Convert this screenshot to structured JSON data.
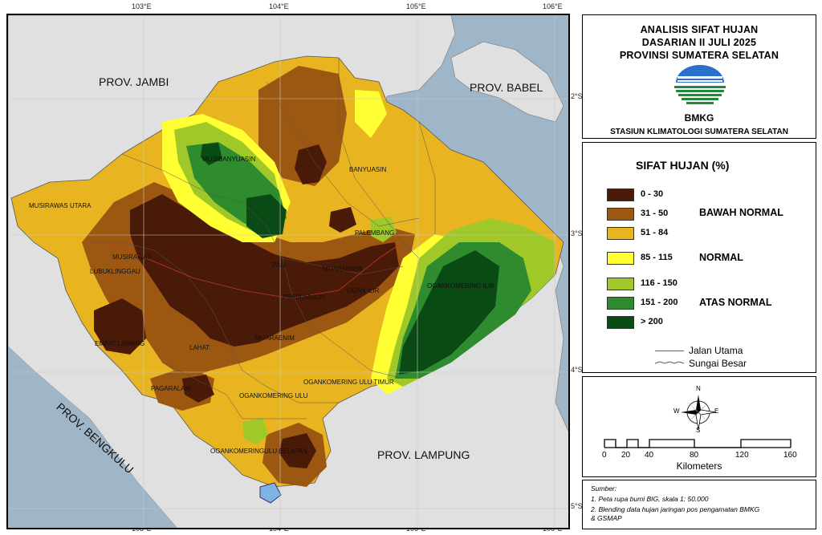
{
  "map": {
    "grid_lon": [
      "103°E",
      "104°E",
      "105°E",
      "106°E"
    ],
    "grid_lat": [
      "2°S",
      "3°S",
      "4°S",
      "5°S"
    ],
    "provinces": {
      "jambi": "PROV. JAMBI",
      "babel": "PROV. BABEL",
      "bengkulu": "PROV. BENGKULU",
      "lampung": "PROV. LAMPUNG"
    },
    "regencies": [
      "MUSIBANYUASIN",
      "BANYUASIN",
      "MUSIRAWAS UTARA",
      "PALEMBANG",
      "MUSIRAWAS",
      "LUBUKLINGGAU",
      "PALI",
      "MUARAENIM",
      "OGAN ILIR",
      "OGANKOMERING ILIR",
      "PRABUMULIH",
      "EMPAT LAWANG",
      "LAHAT",
      "MUARAENIM",
      "OGANKOMERING ULU TIMUR",
      "PAGARALAM",
      "OGANKOMERING ULU",
      "OGANKOMERINGULU SELATAN"
    ]
  },
  "title": {
    "line1": "ANALISIS SIFAT HUJAN",
    "line2": "DASARIAN II JULI 2025",
    "line3": "PROVINSI SUMATERA SELATAN",
    "agency": "BMKG",
    "station": "STASIUN KLIMATOLOGI SUMATERA SELATAN",
    "logo_icon": "bmkg-logo-icon"
  },
  "legend": {
    "title": "SIFAT HUJAN (%)",
    "classes": [
      {
        "label": "0 - 30",
        "color": "#4a1a08"
      },
      {
        "label": "31 - 50",
        "color": "#9c5810"
      },
      {
        "label": "51 - 84",
        "color": "#e8b520"
      },
      {
        "label": "85 - 115",
        "color": "#ffff33"
      },
      {
        "label": "116 - 150",
        "color": "#a0c828"
      },
      {
        "label": "151 - 200",
        "color": "#2e8b2e"
      },
      {
        "label": "> 200",
        "color": "#0a4a14"
      }
    ],
    "groups": {
      "below": "BAWAH NORMAL",
      "normal": "NORMAL",
      "above": "ATAS NORMAL"
    },
    "road": {
      "label": "Jalan Utama",
      "color": "#c0392b"
    },
    "river": {
      "label": "Sungai Besar",
      "color": "#555555"
    }
  },
  "scale": {
    "ticks": [
      "0",
      "20",
      "40",
      "80",
      "120",
      "160"
    ],
    "unit": "Kilometers",
    "compass": {
      "n": "N",
      "s": "S",
      "e": "E",
      "w": "W",
      "icon": "compass-rose-icon"
    }
  },
  "source": {
    "heading": "Sumber:",
    "line1": "1. Peta rupa bumi BIG, skala 1: 50.000",
    "line2": "2. Blending data hujan jaringan pos pengamatan BMKG",
    "line3": "& GSMAP"
  },
  "colors": {
    "sea": "#9fb5c8",
    "land_outside": "#e0e0e0"
  }
}
